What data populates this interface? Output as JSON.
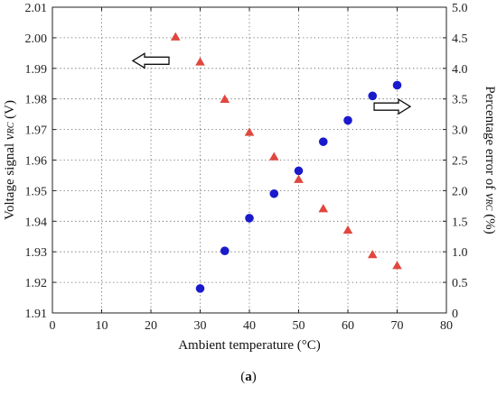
{
  "chart_data": {
    "type": "scatter",
    "x_axis": {
      "label": "Ambient temperature (°C)",
      "range": [
        0,
        80
      ],
      "ticks": [
        "0",
        "10",
        "20",
        "30",
        "40",
        "50",
        "60",
        "70",
        "80"
      ]
    },
    "y_left_axis": {
      "label_prefix": "Voltage signal ",
      "label_var": "v",
      "label_sub": "RC",
      "label_suffix": " (V)",
      "range": [
        1.91,
        2.01
      ],
      "ticks": [
        "1.91",
        "1.92",
        "1.93",
        "1.94",
        "1.95",
        "1.96",
        "1.97",
        "1.98",
        "1.99",
        "2.00",
        "2.01"
      ]
    },
    "y_right_axis": {
      "label_prefix": "Percentage error of ",
      "label_var": "v",
      "label_sub": "RC",
      "label_suffix": " (%)",
      "range": [
        0,
        5.0
      ],
      "ticks": [
        "0",
        "0.5",
        "1.0",
        "1.5",
        "2.0",
        "2.5",
        "3.0",
        "3.5",
        "4.0",
        "4.5",
        "5.0"
      ]
    },
    "grid": "dotted",
    "series": [
      {
        "marker": "circle",
        "color": "#1a1acc",
        "axis": "left",
        "x": [
          30,
          35,
          40,
          45,
          50,
          55,
          60,
          65,
          70
        ],
        "y": [
          1.918,
          1.9303,
          1.941,
          1.949,
          1.9565,
          1.966,
          1.973,
          1.981,
          1.9845
        ]
      },
      {
        "marker": "triangle",
        "color": "#e0473e",
        "axis": "right",
        "x": [
          25,
          30,
          35,
          40,
          45,
          50,
          55,
          60,
          65,
          70
        ],
        "y": [
          4.51,
          4.1,
          3.49,
          2.95,
          2.55,
          2.18,
          1.7,
          1.35,
          0.95,
          0.77
        ]
      }
    ],
    "annotations": [
      {
        "type": "arrow-left",
        "x": 20,
        "y_left": 1.9925
      },
      {
        "type": "arrow-right",
        "x": 69,
        "y_left": 1.9775
      }
    ]
  },
  "caption": {
    "open": "(",
    "letter": "a",
    "close": ")"
  }
}
